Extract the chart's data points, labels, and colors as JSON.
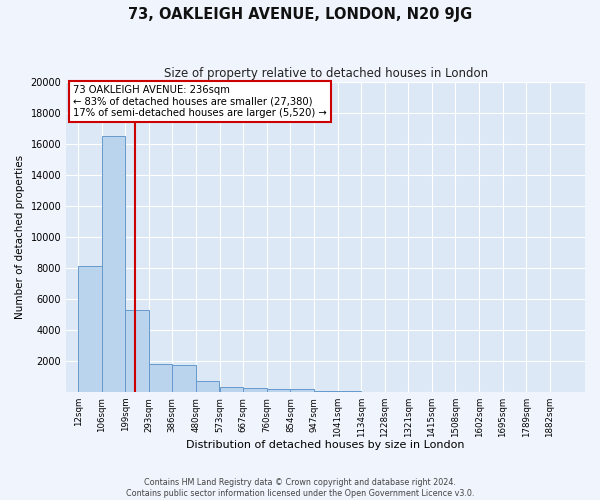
{
  "title1": "73, OAKLEIGH AVENUE, LONDON, N20 9JG",
  "title2": "Size of property relative to detached houses in London",
  "xlabel": "Distribution of detached houses by size in London",
  "ylabel": "Number of detached properties",
  "bar_edges": [
    12,
    106,
    199,
    293,
    386,
    480,
    573,
    667,
    760,
    854,
    947,
    1041,
    1134,
    1228,
    1321,
    1415,
    1508,
    1602,
    1695,
    1789,
    1882
  ],
  "bar_heights": [
    8100,
    16500,
    5300,
    1800,
    1750,
    680,
    340,
    240,
    190,
    180,
    90,
    45,
    25,
    18,
    12,
    8,
    6,
    4,
    3,
    2,
    0
  ],
  "bar_color": "#bad4ee",
  "bar_edge_color": "#6699cc",
  "bg_color": "#dce8f5",
  "grid_color": "#ffffff",
  "red_line_x": 236,
  "red_line_color": "#cc0000",
  "annotation_text": "73 OAKLEIGH AVENUE: 236sqm\n← 83% of detached houses are smaller (27,380)\n17% of semi-detached houses are larger (5,520) →",
  "annotation_box_facecolor": "#ffffff",
  "annotation_box_edgecolor": "#cc0000",
  "ylim": [
    0,
    20000
  ],
  "yticks": [
    0,
    2000,
    4000,
    6000,
    8000,
    10000,
    12000,
    14000,
    16000,
    18000,
    20000
  ],
  "fig_facecolor": "#f0f4fc",
  "footer1": "Contains HM Land Registry data © Crown copyright and database right 2024.",
  "footer2": "Contains public sector information licensed under the Open Government Licence v3.0."
}
